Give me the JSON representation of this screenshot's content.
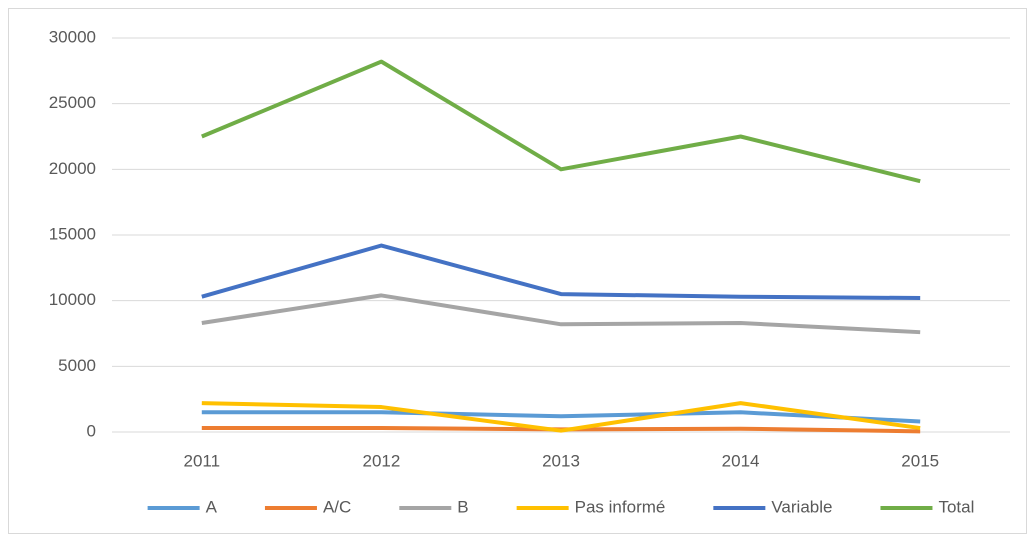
{
  "chart_data": {
    "type": "line",
    "categories": [
      "2011",
      "2012",
      "2013",
      "2014",
      "2015"
    ],
    "series": [
      {
        "name": "A",
        "color": "#5b9bd5",
        "values": [
          1500,
          1500,
          1200,
          1500,
          800
        ]
      },
      {
        "name": "A/C",
        "color": "#ed7d31",
        "values": [
          300,
          300,
          200,
          250,
          50
        ]
      },
      {
        "name": "B",
        "color": "#a5a5a5",
        "values": [
          8300,
          10400,
          8200,
          8300,
          7600
        ]
      },
      {
        "name": "Pas informé",
        "color": "#ffc000",
        "values": [
          2200,
          1900,
          100,
          2200,
          300
        ]
      },
      {
        "name": "Variable",
        "color": "#4472c4",
        "values": [
          10300,
          14200,
          10500,
          10300,
          10200
        ]
      },
      {
        "name": "Total",
        "color": "#70ad47",
        "values": [
          22500,
          28200,
          20000,
          22500,
          19100
        ]
      }
    ],
    "ylim": [
      0,
      30000
    ],
    "yticks": [
      0,
      5000,
      10000,
      15000,
      20000,
      25000,
      30000
    ],
    "grid": true,
    "legend": "bottom"
  }
}
